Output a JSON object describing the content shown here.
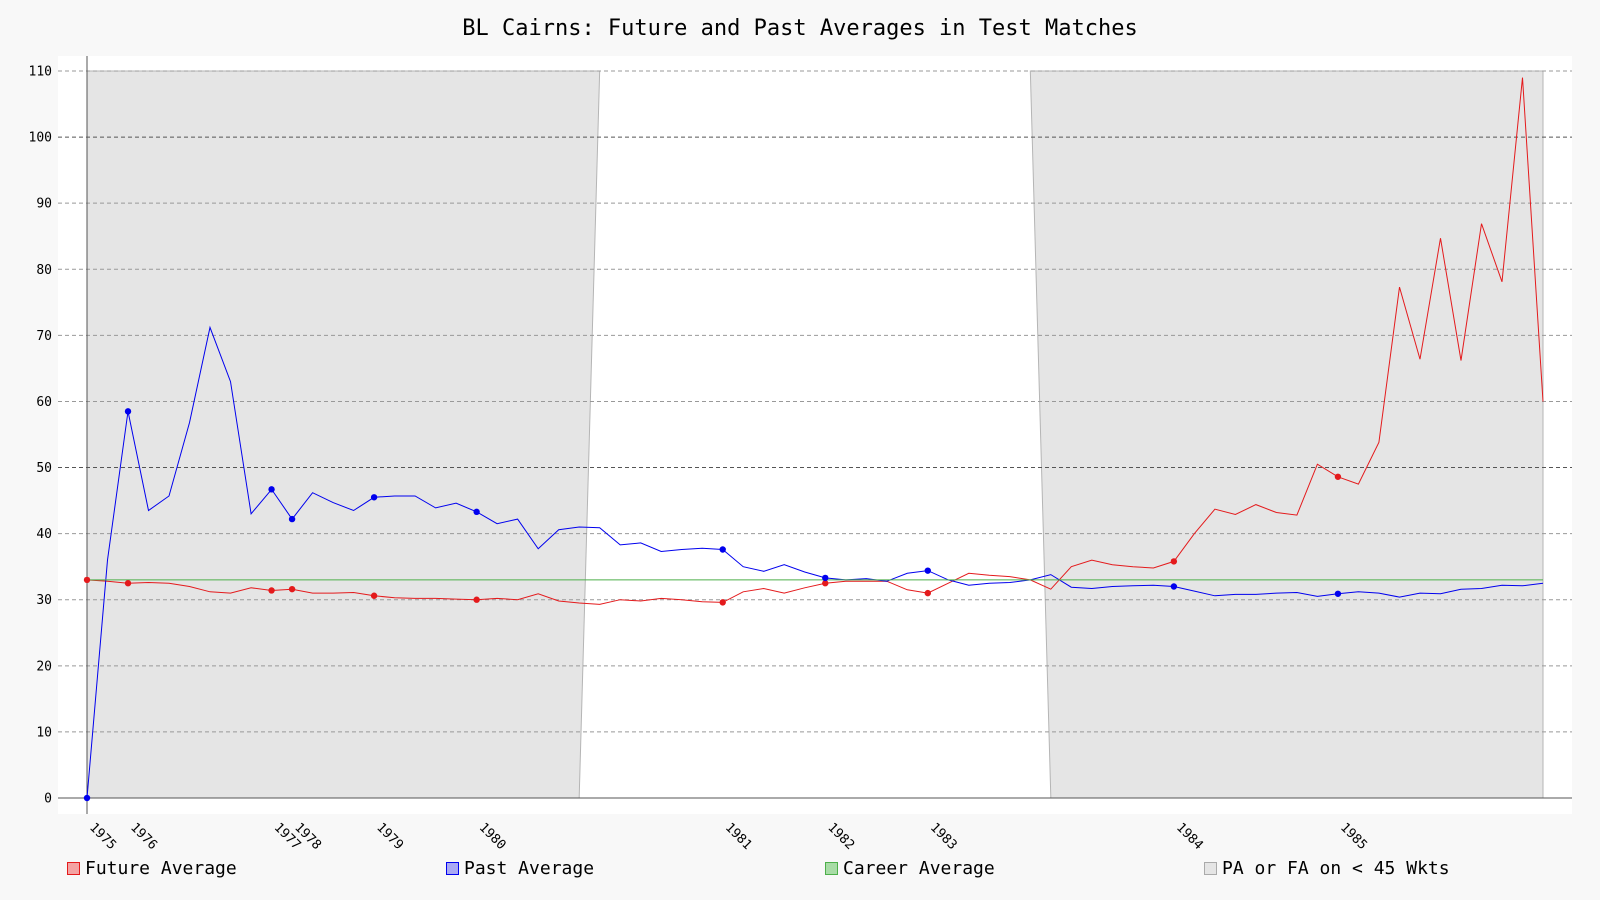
{
  "chart_data": {
    "type": "line",
    "title": "BL Cairns: Future and Past Averages in Test Matches",
    "xlabel": "",
    "ylabel": "",
    "ylim": [
      0,
      110
    ],
    "yticks": [
      0,
      10,
      20,
      30,
      40,
      50,
      60,
      70,
      80,
      90,
      100,
      110
    ],
    "grid": true,
    "legend_position": "bottom",
    "x_index_range": [
      0,
      71
    ],
    "x_tick_labels": [
      {
        "label": "1975",
        "match": 0
      },
      {
        "label": "1976",
        "match": 2
      },
      {
        "label": "1977",
        "match": 9
      },
      {
        "label": "1978",
        "match": 10
      },
      {
        "label": "1979",
        "match": 14
      },
      {
        "label": "1980",
        "match": 19
      },
      {
        "label": "1981",
        "match": 31
      },
      {
        "label": "1982",
        "match": 36
      },
      {
        "label": "1983",
        "match": 41
      },
      {
        "label": "1984",
        "match": 53
      },
      {
        "label": "1985",
        "match": 61
      }
    ],
    "series": [
      {
        "name": "Future Average",
        "color": "#e41a1c",
        "values": [
          33.0,
          32.8,
          32.5,
          32.6,
          32.5,
          32.0,
          31.2,
          31.0,
          31.8,
          31.4,
          31.6,
          31.0,
          31.0,
          31.1,
          30.6,
          30.3,
          30.2,
          30.2,
          30.1,
          30.0,
          30.2,
          30.0,
          30.9,
          29.8,
          29.5,
          29.3,
          30.0,
          29.8,
          30.2,
          30.0,
          29.7,
          29.6,
          31.2,
          31.7,
          31.0,
          31.8,
          32.5,
          32.8,
          32.8,
          32.8,
          31.5,
          31.0,
          32.5,
          34.0,
          33.7,
          33.5,
          33.0,
          31.6,
          35.0,
          36.0,
          35.3,
          35.0,
          34.8,
          35.8,
          40.0,
          43.7,
          42.9,
          44.4,
          43.2,
          42.8,
          50.5,
          48.6,
          47.5,
          53.8,
          77.3,
          66.4,
          84.7,
          66.2,
          86.9,
          78.1,
          109.0,
          60.0
        ],
        "markers": [
          0,
          2,
          9,
          10,
          14,
          19,
          31,
          36,
          41,
          53,
          61
        ]
      },
      {
        "name": "Past Average",
        "color": "#0000ee",
        "values": [
          0.0,
          36.0,
          58.5,
          43.5,
          45.7,
          56.8,
          71.2,
          63.0,
          43.0,
          46.7,
          42.2,
          46.2,
          44.7,
          43.5,
          45.5,
          45.7,
          45.7,
          43.9,
          44.6,
          43.3,
          41.5,
          42.2,
          37.7,
          40.6,
          41.0,
          40.9,
          38.3,
          38.6,
          37.3,
          37.6,
          37.8,
          37.6,
          35.0,
          34.3,
          35.3,
          34.2,
          33.3,
          33.0,
          33.2,
          32.8,
          34.0,
          34.4,
          33.0,
          32.2,
          32.5,
          32.6,
          33.0,
          33.8,
          31.9,
          31.7,
          32.0,
          32.1,
          32.2,
          32.0,
          31.3,
          30.6,
          30.8,
          30.8,
          31.0,
          31.1,
          30.5,
          30.9,
          31.2,
          31.0,
          30.4,
          31.0,
          30.9,
          31.6,
          31.7,
          32.2,
          32.1,
          32.5
        ],
        "markers": [
          0,
          2,
          9,
          10,
          14,
          19,
          31,
          36,
          41,
          53,
          61
        ]
      },
      {
        "name": "Career Average",
        "color": "#4daf4a",
        "constant": 33.0
      }
    ],
    "shaded_band": {
      "name": "PA or FA on < 45 Wkts",
      "color": "#e5e5e5",
      "regions": [
        {
          "top_start": 0,
          "top_end": 25,
          "bottom_start": 0,
          "bottom_end": 24
        },
        {
          "top_start": 46,
          "top_end": 71,
          "bottom_start": 47,
          "bottom_end": 71
        }
      ]
    }
  }
}
